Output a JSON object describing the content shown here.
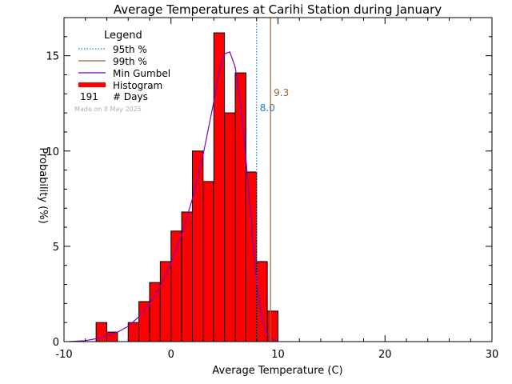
{
  "chart_data": {
    "type": "bar",
    "title": "Average Temperatures at Carihi Station during January",
    "xlabel": "Average Temperature (C)",
    "ylabel": "Probability (%)",
    "xlim": [
      -10,
      30
    ],
    "ylim": [
      0,
      17
    ],
    "x_ticks": [
      -10,
      0,
      10,
      20,
      30
    ],
    "y_ticks": [
      0,
      5,
      10,
      15
    ],
    "grid": false,
    "legend_position": "top-left",
    "bin_width": 1,
    "bins": [
      {
        "x0": -7,
        "x1": -6,
        "value": 1.0
      },
      {
        "x0": -6,
        "x1": -5,
        "value": 0.5
      },
      {
        "x0": -4,
        "x1": -3,
        "value": 1.0
      },
      {
        "x0": -3,
        "x1": -2,
        "value": 2.1
      },
      {
        "x0": -2,
        "x1": -1,
        "value": 3.1
      },
      {
        "x0": -1,
        "x1": 0,
        "value": 4.2
      },
      {
        "x0": 0,
        "x1": 1,
        "value": 5.8
      },
      {
        "x0": 1,
        "x1": 2,
        "value": 6.8
      },
      {
        "x0": 2,
        "x1": 3,
        "value": 10.0
      },
      {
        "x0": 3,
        "x1": 4,
        "value": 8.4
      },
      {
        "x0": 4,
        "x1": 5,
        "value": 16.2
      },
      {
        "x0": 5,
        "x1": 6,
        "value": 12.0
      },
      {
        "x0": 6,
        "x1": 7,
        "value": 14.1
      },
      {
        "x0": 7,
        "x1": 8,
        "value": 8.9
      },
      {
        "x0": 8,
        "x1": 9,
        "value": 4.2
      },
      {
        "x0": 9,
        "x1": 10,
        "value": 1.6
      }
    ],
    "gumbel_curve": {
      "x": [
        -9.5,
        -8,
        -7,
        -6,
        -5,
        -4,
        -3,
        -2,
        -1,
        0,
        1,
        2,
        3,
        4,
        4.5,
        5,
        5.5,
        6,
        6.5,
        7,
        7.5,
        8,
        8.5,
        9,
        10
      ],
      "y": [
        0,
        0.05,
        0.15,
        0.3,
        0.5,
        0.8,
        1.3,
        2.0,
        2.9,
        4.1,
        5.6,
        7.5,
        9.8,
        12.6,
        14.2,
        15.1,
        15.2,
        14.4,
        12.5,
        9.6,
        6.2,
        3.1,
        1.2,
        0.3,
        0
      ]
    },
    "percentiles": [
      {
        "name": "95th %",
        "value": 8.0,
        "label": "8.0",
        "color": "#1f7fcc",
        "style": "dotted"
      },
      {
        "name": "99th %",
        "value": 9.3,
        "label": "9.3",
        "color": "#a0632a",
        "style": "solid"
      }
    ],
    "legend": {
      "title": "Legend",
      "entries": [
        {
          "label": "95th %",
          "color": "#1f7fcc",
          "style": "dotted"
        },
        {
          "label": "99th %",
          "color": "#a0632a",
          "style": "solid"
        },
        {
          "label": "Min Gumbel",
          "color": "#7a00cc",
          "style": "solid"
        },
        {
          "label": "Histogram",
          "color": "#ff0000",
          "style": "thick"
        }
      ],
      "days_count": "191",
      "days_label": "# Days"
    },
    "made_on": "Made on 8 May 2025",
    "colors": {
      "histogram_fill": "#ff0000",
      "histogram_edge": "#000000",
      "gumbel": "#7a00cc",
      "axis": "#000000"
    }
  }
}
